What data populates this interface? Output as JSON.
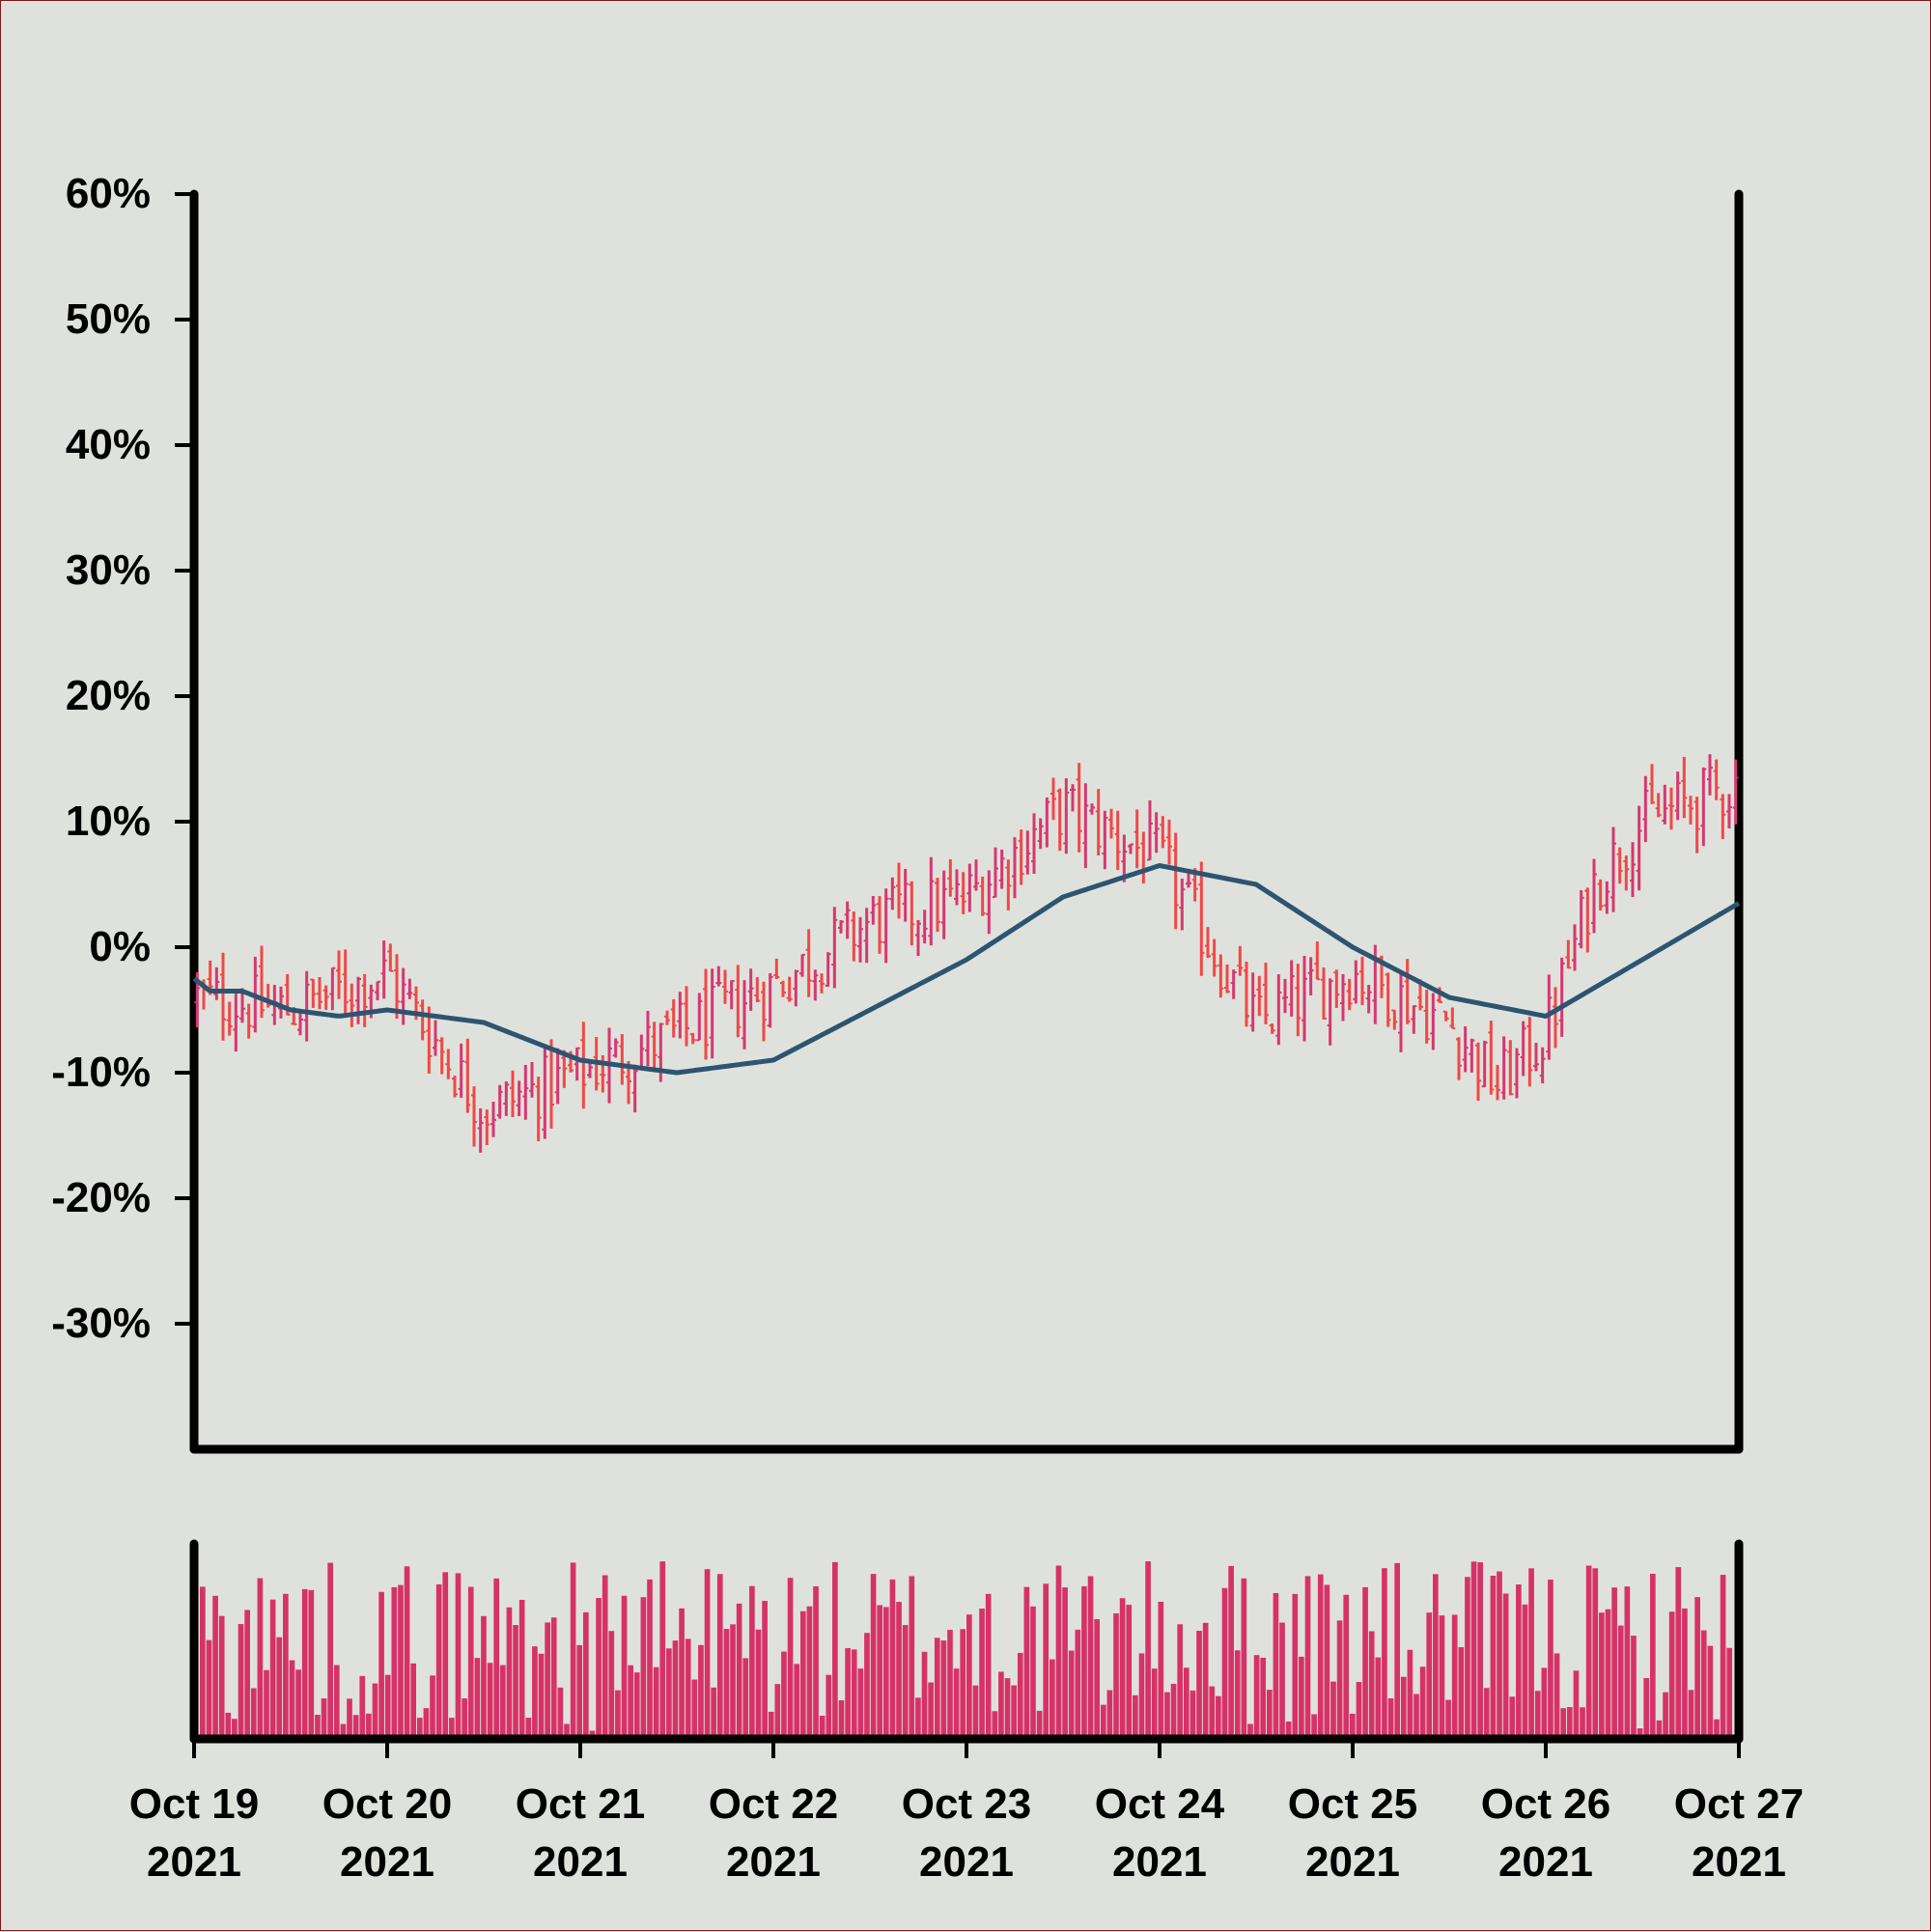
{
  "chart_data": {
    "type": "ohlc",
    "title": "",
    "xlabel": "",
    "ylabel": "",
    "ylim": [
      -0.4,
      0.6
    ],
    "y_ticks": [
      0.6,
      0.5,
      0.4,
      0.3,
      0.2,
      0.1,
      0.0,
      -0.1,
      -0.2,
      -0.3
    ],
    "y_tick_labels": [
      "60%",
      "50%",
      "40%",
      "30%",
      "20%",
      "10%",
      "0%",
      "-10%",
      "-20%",
      "-30%"
    ],
    "x_range": [
      "2021-10-19",
      "2021-10-27"
    ],
    "x_ticks": [
      {
        "line1": "Oct 19",
        "line2": "2021"
      },
      {
        "line1": "Oct 20",
        "line2": "2021"
      },
      {
        "line1": "Oct 21",
        "line2": "2021"
      },
      {
        "line1": "Oct 22",
        "line2": "2021"
      },
      {
        "line1": "Oct 23",
        "line2": "2021"
      },
      {
        "line1": "Oct 24",
        "line2": "2021"
      },
      {
        "line1": "Oct 25",
        "line2": "2021"
      },
      {
        "line1": "Oct 26",
        "line2": "2021"
      },
      {
        "line1": "Oct 27",
        "line2": "2021"
      }
    ],
    "price_keypoints": [
      [
        "2021-10-19",
        -0.04
      ],
      [
        "2021-10-19 12:00",
        -0.05
      ],
      [
        "2021-10-20",
        -0.02
      ],
      [
        "2021-10-20 12:00",
        -0.13
      ],
      [
        "2021-10-21",
        -0.1
      ],
      [
        "2021-10-21 12:00",
        -0.07
      ],
      [
        "2021-10-22",
        -0.03
      ],
      [
        "2021-10-22 12:00",
        0.02
      ],
      [
        "2021-10-23",
        0.04
      ],
      [
        "2021-10-23 12:00",
        0.11
      ],
      [
        "2021-10-24",
        0.07
      ],
      [
        "2021-10-24 12:00",
        -0.06
      ],
      [
        "2021-10-25",
        -0.02
      ],
      [
        "2021-10-25 12:00",
        -0.06
      ],
      [
        "2021-10-25 18:00",
        -0.11
      ],
      [
        "2021-10-26",
        -0.07
      ],
      [
        "2021-10-26 06:00",
        0.05
      ],
      [
        "2021-10-26 12:00",
        0.1
      ],
      [
        "2021-10-27",
        0.13
      ]
    ],
    "moving_average": {
      "points": [
        [
          "2021-10-19",
          -0.025
        ],
        [
          "2021-10-19 02:00",
          -0.035
        ],
        [
          "2021-10-19 06:00",
          -0.035
        ],
        [
          "2021-10-19 12:00",
          -0.05
        ],
        [
          "2021-10-19 18:00",
          -0.055
        ],
        [
          "2021-10-20",
          -0.05
        ],
        [
          "2021-10-20 12:00",
          -0.06
        ],
        [
          "2021-10-21",
          -0.09
        ],
        [
          "2021-10-21 12:00",
          -0.1
        ],
        [
          "2021-10-22",
          -0.09
        ],
        [
          "2021-10-22 12:00",
          -0.05
        ],
        [
          "2021-10-23",
          -0.01
        ],
        [
          "2021-10-23 12:00",
          0.04
        ],
        [
          "2021-10-24",
          0.065
        ],
        [
          "2021-10-24 12:00",
          0.05
        ],
        [
          "2021-10-25",
          0.0
        ],
        [
          "2021-10-25 12:00",
          -0.04
        ],
        [
          "2021-10-26",
          -0.055
        ],
        [
          "2021-10-26 12:00",
          -0.01
        ],
        [
          "2021-10-27",
          0.035
        ]
      ]
    },
    "volume": {
      "bar_count": 240,
      "relative_range": [
        0.0,
        1.0
      ]
    },
    "colors": {
      "background": "#dfe2dc",
      "up": "#d63870",
      "down": "#f04848",
      "moving_average": "#2d5470",
      "volume": "#d63268",
      "axis": "#000000"
    }
  }
}
